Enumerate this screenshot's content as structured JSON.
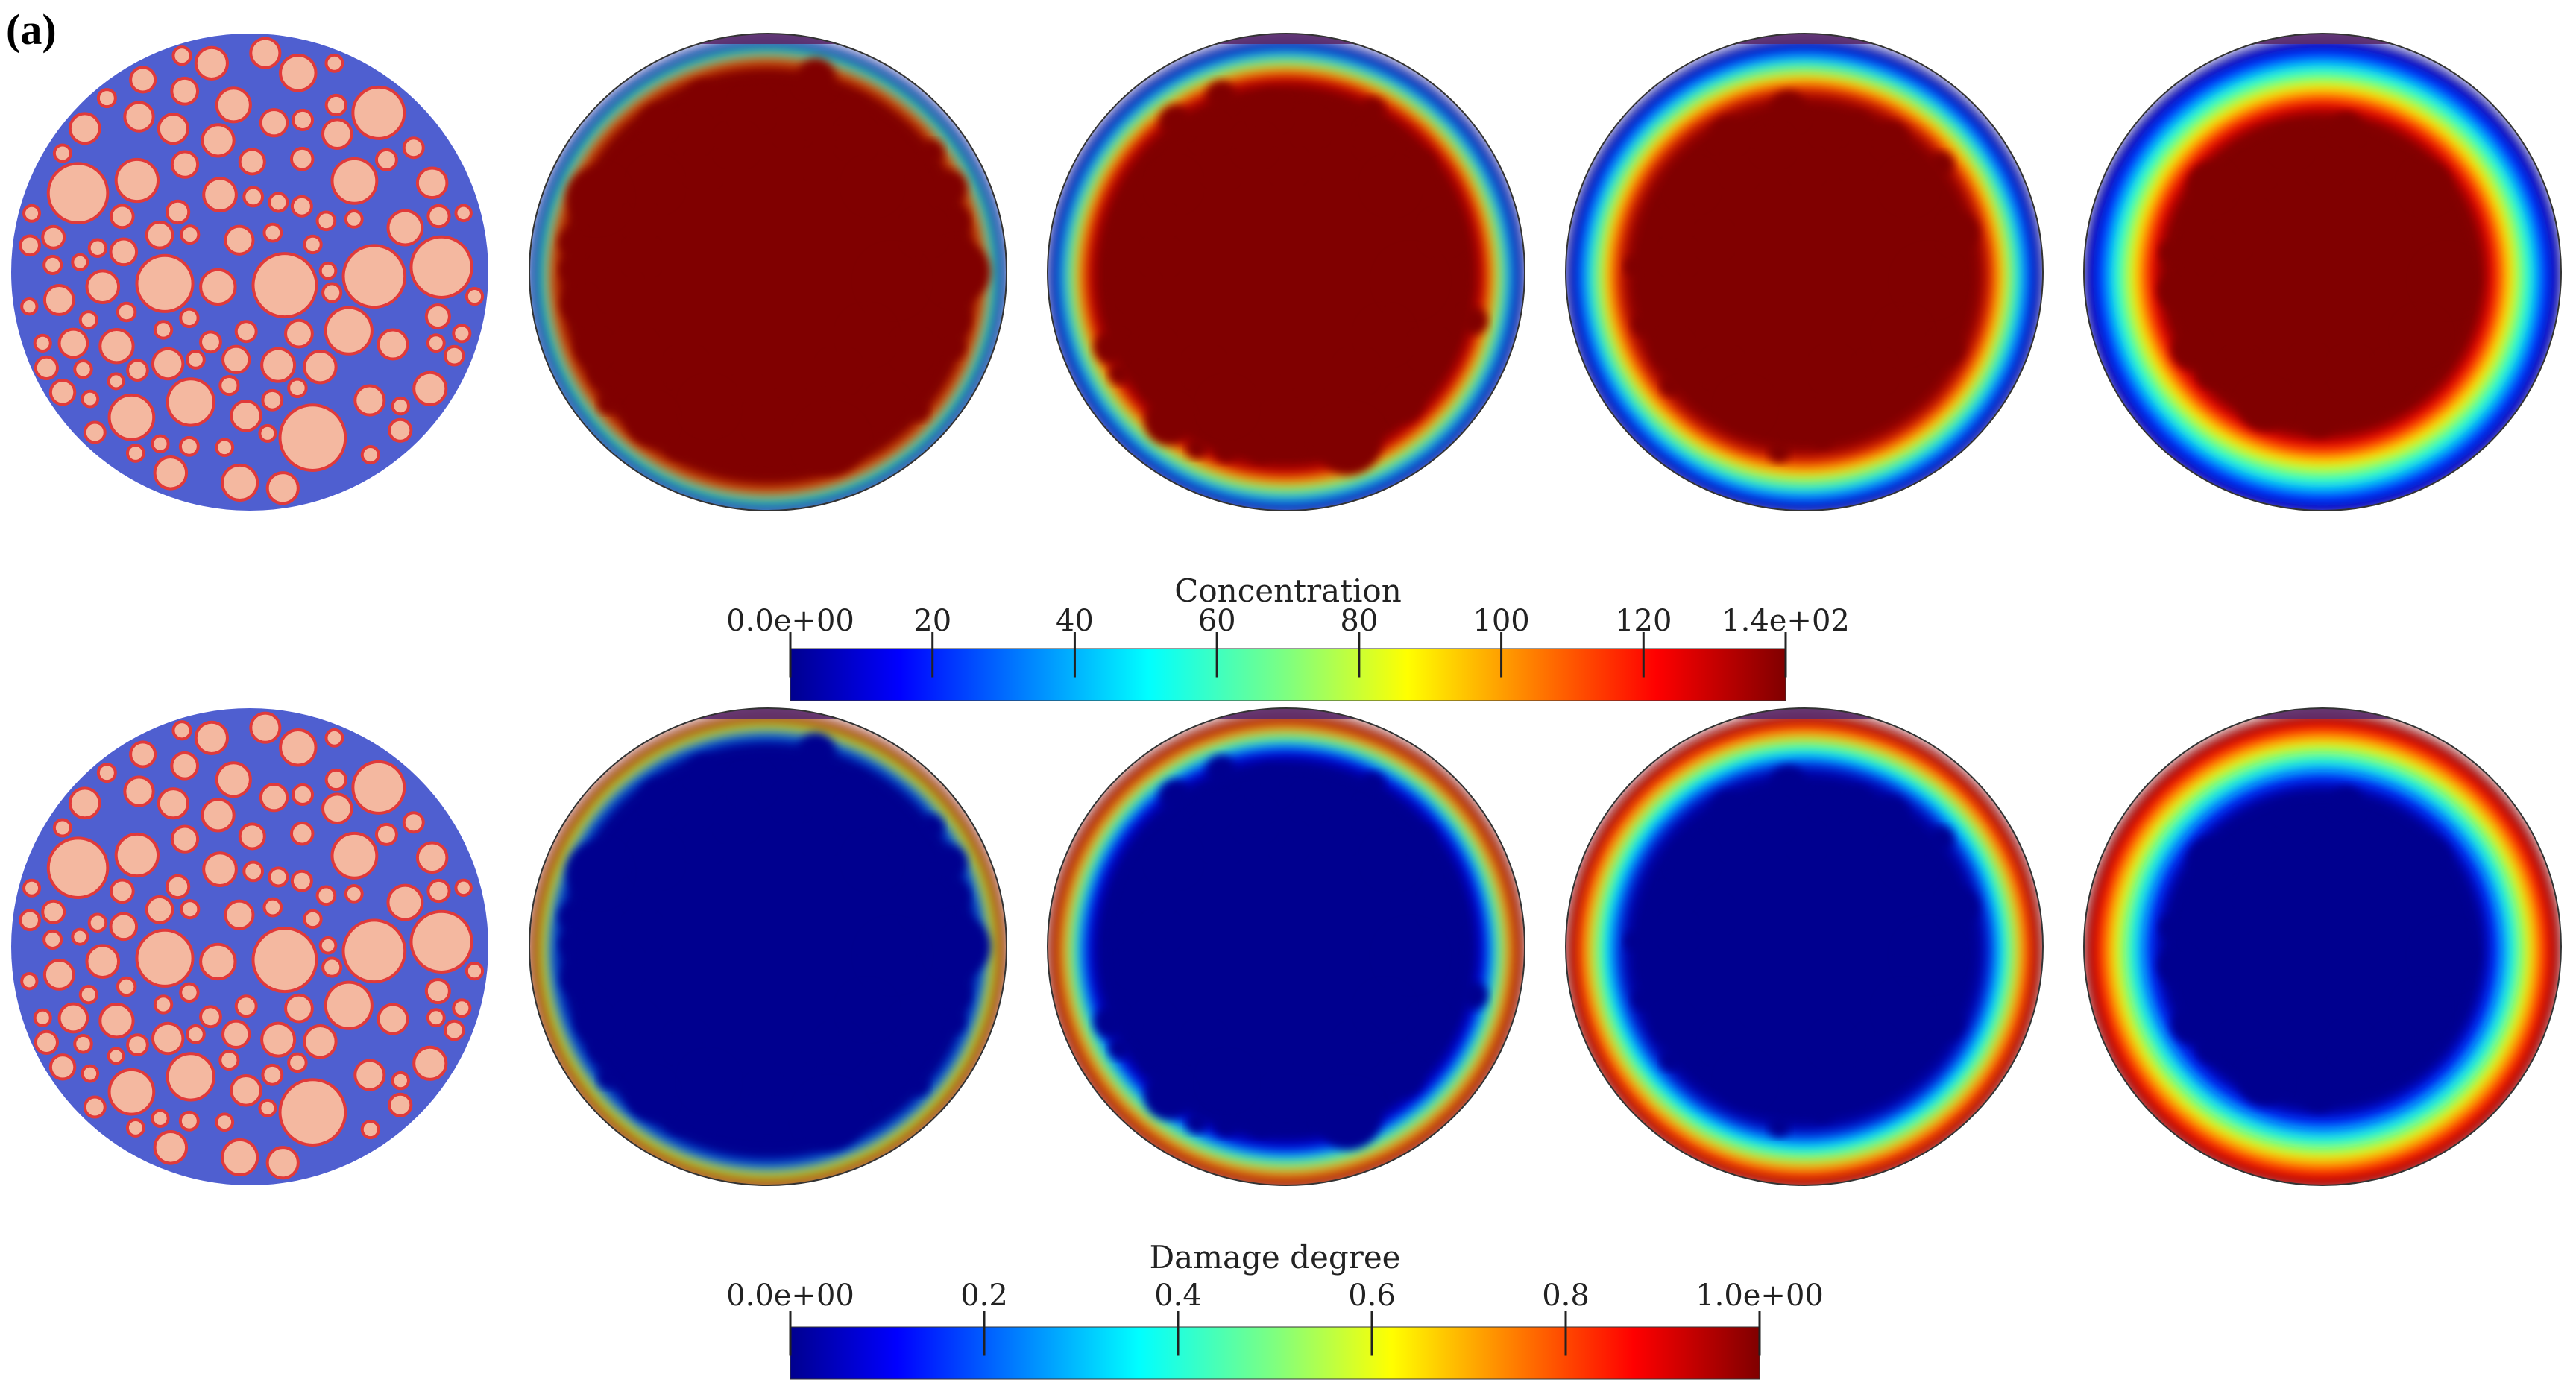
{
  "panel_label": "(a)",
  "colorbars": {
    "concentration": {
      "title": "Concentration",
      "ticks": [
        "0.0e+00",
        "20",
        "40",
        "60",
        "80",
        "100",
        "120",
        "1.4e+02"
      ],
      "range": [
        0,
        140
      ]
    },
    "damage": {
      "title": "Damage degree",
      "ticks": [
        "0.0e+00",
        "0.2",
        "0.4",
        "0.6",
        "0.8",
        "1.0e+00"
      ],
      "range": [
        0,
        1
      ]
    }
  },
  "colors": {
    "mortar": "#4f5fd0",
    "aggregate": "#f4b8a0",
    "interface": "#e03a3a",
    "jet_dark_red": "#800000",
    "jet_dark_blue": "#00008f"
  },
  "rows": [
    {
      "name": "concentration-row",
      "field": "concentration",
      "stages": 4
    },
    {
      "name": "damage-row",
      "field": "damage",
      "stages": 4
    }
  ]
}
